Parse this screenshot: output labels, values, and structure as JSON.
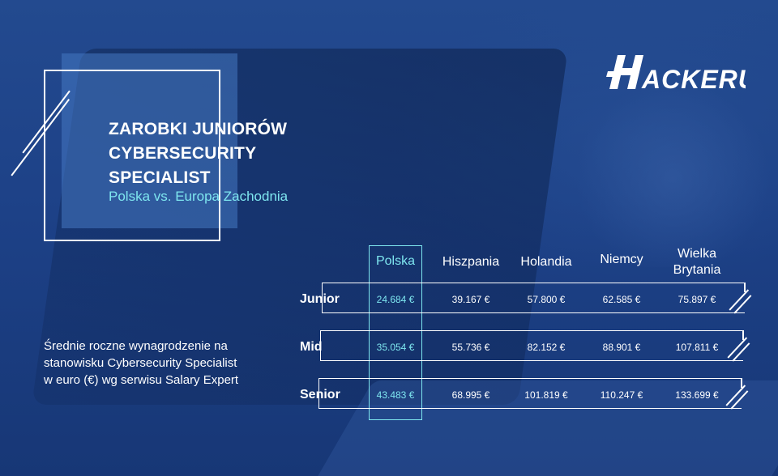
{
  "brand": {
    "logo_text": "HACKERU"
  },
  "heading": {
    "title_lines": [
      "ZAROBKI JUNIORÓW",
      "CYBERSECURITY",
      "SPECIALIST"
    ],
    "subtitle": "Polska vs. Europa Zachodnia"
  },
  "description_lines": [
    "Średnie roczne wynagrodzenie na",
    "stanowisku Cybersecurity Specialist",
    "w euro (€) wg serwisu Salary Expert"
  ],
  "table": {
    "columns": [
      "Polska",
      "Hiszpania",
      "Holandia",
      "Niemcy",
      "Wielka Brytania"
    ],
    "column_lines": [
      [
        "Polska"
      ],
      [
        "Hiszpania"
      ],
      [
        "Holandia"
      ],
      [
        "Niemcy"
      ],
      [
        "Wielka",
        "Brytania"
      ]
    ],
    "rows": [
      {
        "label": "Junior",
        "values": [
          "24.684 €",
          "39.167 €",
          "57.800 €",
          "62.585 €",
          "75.897 €"
        ]
      },
      {
        "label": "Mid",
        "values": [
          "35.054 €",
          "55.736 €",
          "82.152 €",
          "88.901 €",
          "107.811 €"
        ]
      },
      {
        "label": "Senior",
        "values": [
          "43.483 €",
          "68.995 €",
          "101.819 €",
          "110.247 €",
          "133.699 €"
        ]
      }
    ]
  },
  "colors": {
    "background": "#1c3f82",
    "accent": "#7ee6ef",
    "text": "#ffffff"
  }
}
